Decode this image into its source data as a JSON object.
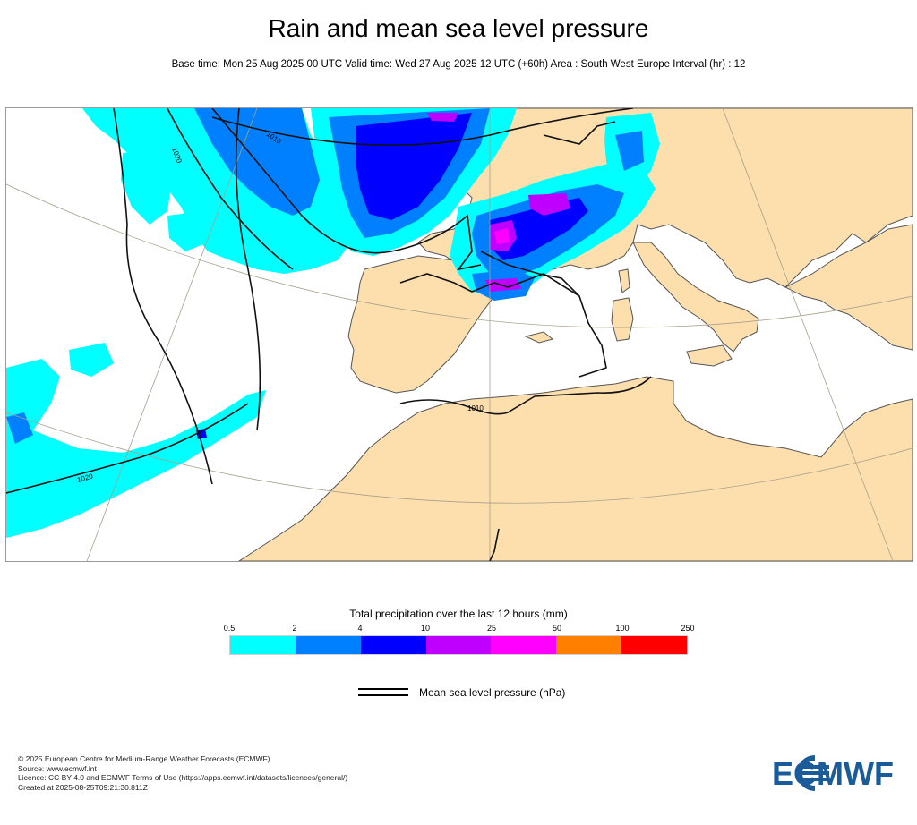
{
  "header": {
    "title": "Rain and mean sea level pressure",
    "subtitle": "Base time: Mon 25 Aug 2025 00 UTC Valid time: Wed 27 Aug 2025 12 UTC (+60h) Area : South West Europe Interval (hr) : 12"
  },
  "map": {
    "isobar_labels": [
      "1010",
      "1020",
      "1010",
      "1020"
    ],
    "colors": {
      "land": "#fddfae",
      "sea": "#ffffff",
      "coastline": "#555555",
      "isobar": "#111111",
      "graticule": "#a8a08a"
    }
  },
  "legend": {
    "title": "Total precipitation over the last 12 hours (mm)",
    "ticks": [
      "0.5",
      "2",
      "4",
      "10",
      "25",
      "50",
      "100",
      "250"
    ],
    "colors": [
      "#00ffff",
      "#0080ff",
      "#0000ff",
      "#c000ff",
      "#ff00ff",
      "#ff8000",
      "#ff0000"
    ],
    "pressure_label": "Mean sea level pressure (hPa)"
  },
  "footer": {
    "lines": [
      "© 2025 European Centre for Medium-Range Weather Forecasts (ECMWF)",
      "Source: www.ecmwf.int",
      "Licence: CC BY 4.0 and ECMWF Terms of Use (https://apps.ecmwf.int/datasets/licences/general/)",
      "Created at 2025-08-25T09:21:30.811Z"
    ],
    "logo_text": "ECMWF",
    "logo_color": "#1a5b9a"
  }
}
